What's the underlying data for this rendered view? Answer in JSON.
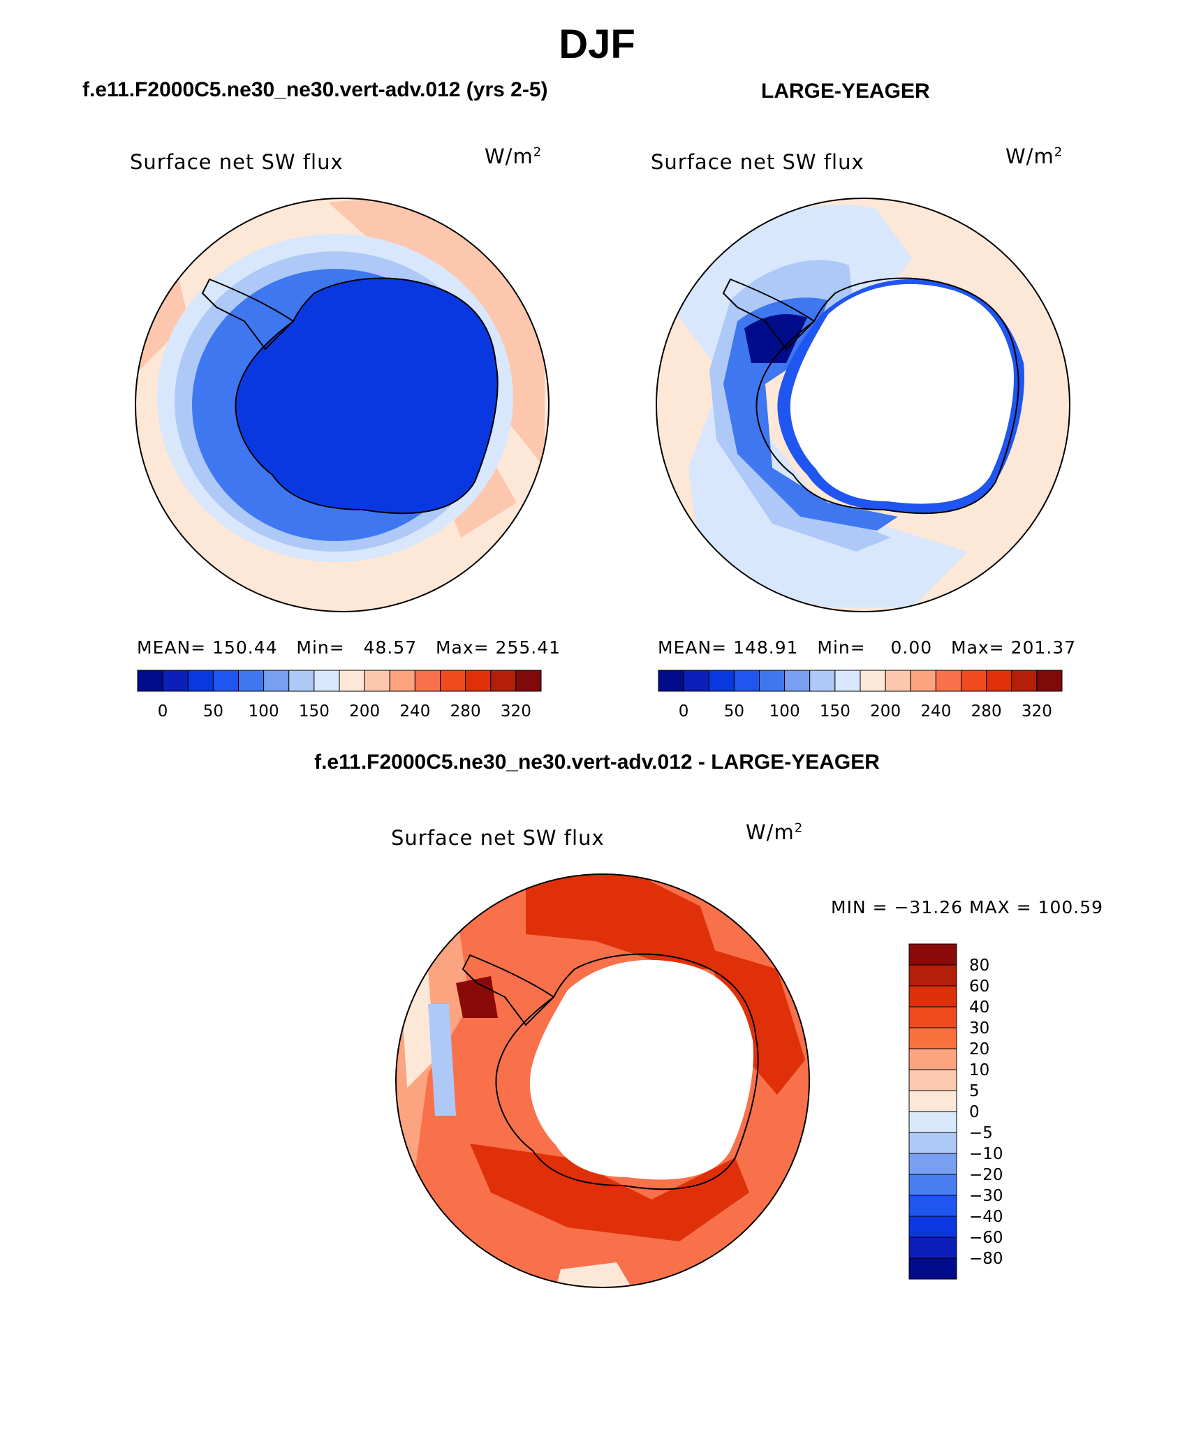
{
  "title": "DJF",
  "panels": [
    {
      "title": "f.e11.F2000C5.ne30_ne30.vert-adv.012 (yrs 2-5)",
      "variable": "Surface net SW flux",
      "units_base": "W/m",
      "units_exp": "2",
      "mean_label": "MEAN= 150.44",
      "min_label": "Min=   48.57",
      "max_label": "Max= 255.41",
      "mean": 150.44,
      "min": 48.57,
      "max": 255.41
    },
    {
      "title": "LARGE-YEAGER",
      "variable": "Surface net SW flux",
      "units_base": "W/m",
      "units_exp": "2",
      "mean_label": "MEAN= 148.91",
      "min_label": "Min=    0.00",
      "max_label": "Max= 201.37",
      "mean": 148.91,
      "min": 0.0,
      "max": 201.37
    }
  ],
  "shared_colorbar": {
    "tick_labels": [
      "0",
      "50",
      "100",
      "150",
      "200",
      "240",
      "280",
      "320"
    ],
    "colors": [
      "#000c8a",
      "#0c1fb8",
      "#0a38e0",
      "#1f55f0",
      "#3f77f0",
      "#789ff0",
      "#aec9f7",
      "#d8e7fb",
      "#fde7d7",
      "#fcc7ad",
      "#fca37f",
      "#f8714a",
      "#f04a1f",
      "#e0300a",
      "#b41f0a",
      "#7e0a0a"
    ]
  },
  "difference": {
    "title": "f.e11.F2000C5.ne30_ne30.vert-adv.012 - LARGE-YEAGER",
    "variable": "Surface net SW flux",
    "units_base": "W/m",
    "units_exp": "2",
    "minmax_label": "MIN = −31.26 MAX = 100.59",
    "min": -31.26,
    "max": 100.59,
    "colorbar_labels": [
      "80",
      "60",
      "40",
      "30",
      "20",
      "10",
      "5",
      "0",
      "−5",
      "−10",
      "−20",
      "−30",
      "−40",
      "−60",
      "−80"
    ],
    "colorbar_colors": [
      "#8a0a0a",
      "#b41f0a",
      "#dd300a",
      "#f04a1f",
      "#f8713f",
      "#fca37f",
      "#fdc8b0",
      "#fde8d8",
      "#d9e8fb",
      "#aec9f7",
      "#789ff0",
      "#4a7df0",
      "#1f55f0",
      "#0a38e0",
      "#0c1fb8",
      "#000c8a"
    ]
  },
  "map_colors": {
    "land": "#ffffff",
    "coast": "#000000",
    "deep_blue": "#0a38e0",
    "mid_blue": "#3f77f0",
    "light_blue": "#aec9f7",
    "pale_blue": "#d8e7fb",
    "pale_orange": "#fde7d7",
    "light_orange": "#fcc7ad",
    "orange": "#f8714a",
    "red_orange": "#e0300a",
    "dark_red": "#8a0a0a"
  }
}
